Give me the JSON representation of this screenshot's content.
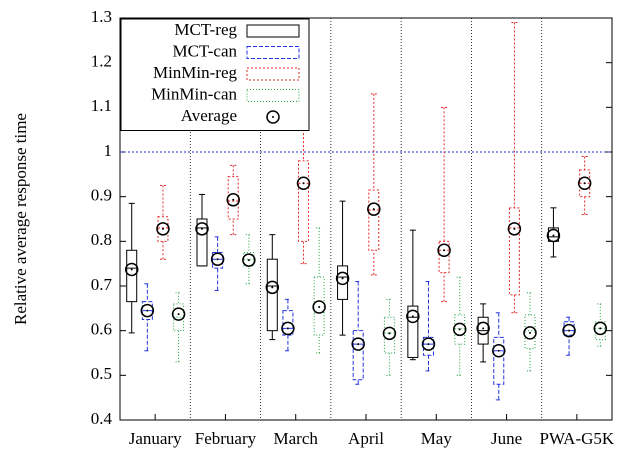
{
  "chart_data": {
    "type": "box",
    "ylabel": "Relative average response time",
    "categories": [
      "January",
      "February",
      "March",
      "April",
      "May",
      "June",
      "PWA-G5K"
    ],
    "ylim": [
      0.4,
      1.3
    ],
    "yticks": [
      0.4,
      0.5,
      0.6,
      0.7,
      0.8,
      0.9,
      1,
      1.1,
      1.2,
      1.3
    ],
    "hline": 1,
    "hline_color": "#2233dd",
    "legend": "top-left",
    "series": [
      {
        "name": "MCT-reg",
        "color": "#000000",
        "dash": "none",
        "min": [
          0.595,
          0.745,
          0.58,
          0.59,
          0.535,
          0.53,
          0.765
        ],
        "q1": [
          0.665,
          0.745,
          0.6,
          0.67,
          0.54,
          0.57,
          0.8
        ],
        "median": [
          0.74,
          0.83,
          0.7,
          0.72,
          0.63,
          0.6,
          0.81
        ],
        "q3": [
          0.78,
          0.85,
          0.76,
          0.745,
          0.655,
          0.63,
          0.83
        ],
        "max": [
          0.885,
          0.905,
          0.815,
          0.89,
          0.825,
          0.66,
          0.875
        ],
        "mean": [
          0.737,
          0.828,
          0.697,
          0.717,
          0.632,
          0.605,
          0.813
        ]
      },
      {
        "name": "MCT-can",
        "color": "#2233dd",
        "dash": "4,2",
        "min": [
          0.555,
          0.69,
          0.555,
          0.48,
          0.51,
          0.445,
          0.545
        ],
        "q1": [
          0.625,
          0.74,
          0.59,
          0.49,
          0.545,
          0.48,
          0.59
        ],
        "median": [
          0.645,
          0.76,
          0.605,
          0.57,
          0.57,
          0.555,
          0.6
        ],
        "q3": [
          0.665,
          0.775,
          0.645,
          0.6,
          0.585,
          0.585,
          0.62
        ],
        "max": [
          0.705,
          0.81,
          0.67,
          0.71,
          0.71,
          0.64,
          0.63
        ],
        "mean": [
          0.645,
          0.76,
          0.605,
          0.57,
          0.57,
          0.555,
          0.6
        ]
      },
      {
        "name": "MinMin-reg",
        "color": "#e02828",
        "dash": "2,2",
        "min": [
          0.76,
          0.815,
          0.75,
          0.725,
          0.665,
          0.64,
          0.86
        ],
        "q1": [
          0.8,
          0.85,
          0.8,
          0.78,
          0.73,
          0.68,
          0.9
        ],
        "median": [
          0.83,
          0.89,
          0.93,
          0.87,
          0.78,
          0.83,
          0.93
        ],
        "q3": [
          0.855,
          0.945,
          0.98,
          0.915,
          0.8,
          0.875,
          0.96
        ],
        "max": [
          0.925,
          0.97,
          1.105,
          1.13,
          1.1,
          1.29,
          0.99
        ],
        "mean": [
          0.828,
          0.893,
          0.93,
          0.872,
          0.78,
          0.828,
          0.93
        ]
      },
      {
        "name": "MinMin-can",
        "color": "#20a040",
        "dash": "1,2",
        "min": [
          0.53,
          0.705,
          0.55,
          0.5,
          0.5,
          0.51,
          0.565
        ],
        "q1": [
          0.6,
          0.745,
          0.59,
          0.55,
          0.57,
          0.56,
          0.58
        ],
        "median": [
          0.63,
          0.76,
          0.64,
          0.595,
          0.605,
          0.6,
          0.605
        ],
        "q3": [
          0.66,
          0.775,
          0.72,
          0.63,
          0.635,
          0.635,
          0.62
        ],
        "max": [
          0.685,
          0.815,
          0.83,
          0.67,
          0.72,
          0.685,
          0.66
        ],
        "mean": [
          0.637,
          0.758,
          0.653,
          0.594,
          0.603,
          0.595,
          0.605
        ]
      }
    ],
    "average": {
      "name": "Average",
      "color": "#000000"
    }
  }
}
